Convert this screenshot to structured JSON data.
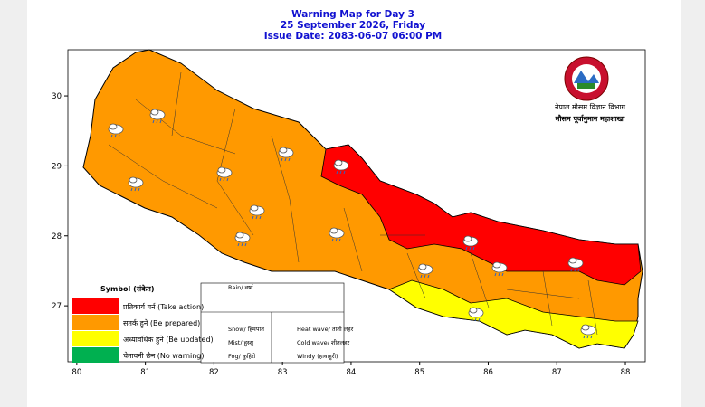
{
  "header": {
    "title": "Warning Map for Day 3",
    "date": "25 September 2026, Friday",
    "issue_date": "Issue Date: 2083-06-07 06:00 PM"
  },
  "axes": {
    "xlim": [
      79.87,
      88.29
    ],
    "ylim": [
      26.2,
      30.66
    ],
    "xticks": [
      80,
      81,
      82,
      83,
      84,
      85,
      86,
      87,
      88
    ],
    "yticks": [
      27,
      28,
      29,
      30
    ]
  },
  "logo": {
    "organization": "नेपाल मौसम विज्ञान विभाग",
    "division": "मौसम पूर्वानुमान महाशाखा"
  },
  "legend": {
    "title": "Symbol (संकेत)",
    "levels": [
      {
        "label": "प्रतिकार्य गर्न (Take action)",
        "color": "#ff0000"
      },
      {
        "label": "सतर्क हुने (Be prepared)",
        "color": "#ff9900"
      },
      {
        "label": "अध्यावधिक हुने (Be updated)",
        "color": "#ffff00"
      },
      {
        "label": "चेतावनी छैन (No warning)",
        "color": "#00b050"
      }
    ],
    "symbols": [
      "Rain/ वर्षा",
      "Snow/ हिमपात",
      "Mist/ हुस्सु",
      "Fog/ कुहिरो",
      "Heat wave/ तातो लहर",
      "Cold wave/ शीतलहर",
      "Windy (हावाहुरी)"
    ]
  }
}
